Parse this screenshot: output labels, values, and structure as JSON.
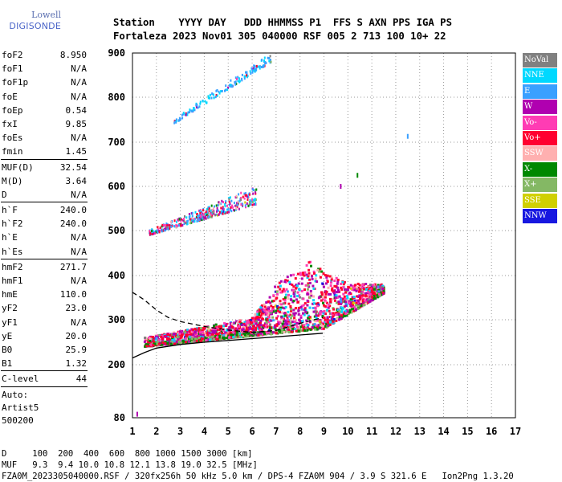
{
  "logo": {
    "line1": "Lowell",
    "line2": "DIGISONDE"
  },
  "header": {
    "labels": "Station    YYYY DAY   DDD HHMMSS P1  FFS S AXN PPS IGA PS",
    "values": "Fortaleza 2023 Nov01 305 040000 RSF 005 2 713 100 10+ 22"
  },
  "params": [
    {
      "name": "foF2",
      "value": "8.950"
    },
    {
      "name": "foF1",
      "value": "N/A"
    },
    {
      "name": "foF1p",
      "value": "N/A"
    },
    {
      "name": "foE",
      "value": "N/A"
    },
    {
      "name": "foEp",
      "value": "0.54"
    },
    {
      "name": "fxI",
      "value": "9.85"
    },
    {
      "name": "foEs",
      "value": "N/A"
    },
    {
      "name": "fmin",
      "value": "1.45"
    },
    {
      "sep": true
    },
    {
      "name": "MUF(D)",
      "value": "32.54"
    },
    {
      "name": "M(D)",
      "value": "3.64"
    },
    {
      "name": "D",
      "value": "N/A"
    },
    {
      "sep": true
    },
    {
      "name": "h`F",
      "value": "240.0"
    },
    {
      "name": "h`F2",
      "value": "240.0"
    },
    {
      "name": "h`E",
      "value": "N/A"
    },
    {
      "name": "h`Es",
      "value": "N/A"
    },
    {
      "sep": true
    },
    {
      "name": "hmF2",
      "value": "271.7"
    },
    {
      "name": "hmF1",
      "value": "N/A"
    },
    {
      "name": "hmE",
      "value": "110.0"
    },
    {
      "name": "yF2",
      "value": "23.0"
    },
    {
      "name": "yF1",
      "value": "N/A"
    },
    {
      "name": "yE",
      "value": "20.0"
    },
    {
      "name": "B0",
      "value": "25.9"
    },
    {
      "name": "B1",
      "value": "1.32"
    },
    {
      "sep": true
    },
    {
      "name": "C-level",
      "value": "44"
    },
    {
      "sep": true
    }
  ],
  "auto": {
    "line1": "Auto:",
    "line2": "Artist5",
    "line3": "500200"
  },
  "legend": [
    {
      "label": "NoVal",
      "color": "#808080"
    },
    {
      "label": "NNE",
      "color": "#00d8ff"
    },
    {
      "label": "E",
      "color": "#3aa0ff"
    },
    {
      "label": "W",
      "color": "#b000b0"
    },
    {
      "label": "Vo-",
      "color": "#ff3cb4"
    },
    {
      "label": "Vo+",
      "color": "#ff0030"
    },
    {
      "label": "SSW",
      "color": "#ffb0b0"
    },
    {
      "label": "X-",
      "color": "#008800"
    },
    {
      "label": "X+",
      "color": "#84b864"
    },
    {
      "label": "SSE",
      "color": "#d0d000"
    },
    {
      "label": "NNW",
      "color": "#1818e0"
    }
  ],
  "footer": {
    "d_line": "D     100  200  400  600  800 1000 1500 3000 [km]",
    "muf_line": "MUF   9.3  9.4 10.0 10.8 12.1 13.8 19.0 32.5 [MHz]",
    "file_line": "FZA0M_2023305040000.RSF / 320fx256h 50 kHz 5.0 km / DPS-4 FZA0M 904 / 3.9 S 321.6 E   Ion2Png 1.3.20"
  },
  "chart_data": {
    "type": "scatter",
    "xlim": [
      1,
      17
    ],
    "ylim": [
      80,
      900
    ],
    "x_ticks": [
      1,
      2,
      3,
      4,
      5,
      6,
      7,
      8,
      9,
      10,
      11,
      12,
      13,
      14,
      15,
      16,
      17
    ],
    "y_ticks": [
      80,
      200,
      300,
      400,
      500,
      600,
      700,
      800,
      900
    ],
    "grid": "dotted",
    "legend_position": "right",
    "clusters": [
      {
        "name": "F-layer O-trace",
        "x_range": [
          1.5,
          11.5
        ],
        "height_floor": [
          [
            1.5,
            240
          ],
          [
            9,
            280
          ],
          [
            11.5,
            360
          ]
        ],
        "height_spread": [
          [
            1.5,
            20
          ],
          [
            6,
            40
          ],
          [
            7,
            110
          ],
          [
            8.5,
            160
          ],
          [
            10,
            70
          ],
          [
            11.5,
            20
          ]
        ]
      },
      {
        "name": "second-hop trace",
        "x_range": [
          1.7,
          6.2
        ],
        "height_floor": [
          [
            1.7,
            490
          ],
          [
            6.2,
            560
          ]
        ],
        "height_spread": [
          [
            1.7,
            10
          ],
          [
            6.2,
            40
          ]
        ]
      },
      {
        "name": "third-hop trace",
        "x_range": [
          2.7,
          6.8
        ],
        "height_floor": [
          [
            2.7,
            740
          ],
          [
            6.8,
            880
          ]
        ],
        "height_spread": [
          [
            2.7,
            10
          ],
          [
            6.8,
            20
          ]
        ]
      }
    ],
    "profile_dashed": [
      [
        1.0,
        362
      ],
      [
        1.5,
        345
      ],
      [
        2.0,
        322
      ],
      [
        2.5,
        305
      ],
      [
        3.0,
        296
      ],
      [
        4.0,
        285
      ],
      [
        5.0,
        277
      ],
      [
        6.0,
        272
      ],
      [
        7.0,
        276
      ],
      [
        8.0,
        292
      ],
      [
        8.95,
        305
      ]
    ],
    "profile_solid": [
      [
        1.0,
        215
      ],
      [
        1.5,
        227
      ],
      [
        2.0,
        237
      ],
      [
        3.0,
        245
      ],
      [
        4.0,
        250
      ],
      [
        5.0,
        254
      ],
      [
        6.0,
        258
      ],
      [
        7.0,
        262
      ],
      [
        8.0,
        266
      ],
      [
        8.95,
        270
      ]
    ],
    "isolated_points": [
      [
        12.5,
        713
      ],
      [
        10.4,
        625
      ],
      [
        1.2,
        88
      ],
      [
        9.7,
        600
      ]
    ]
  }
}
